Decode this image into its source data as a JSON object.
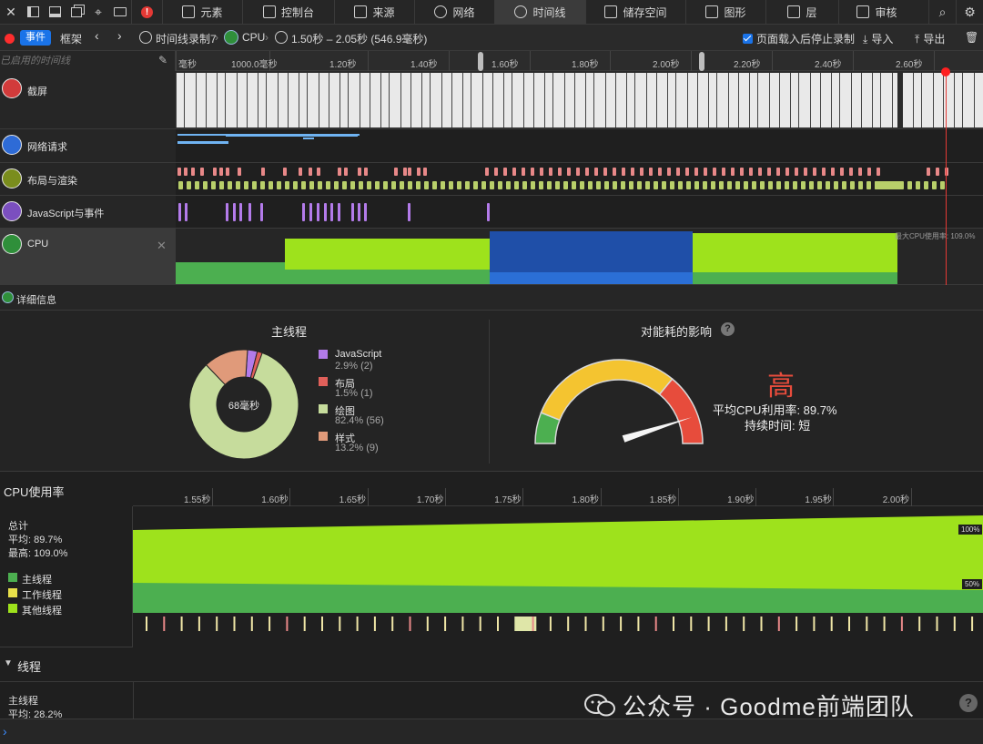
{
  "tabs": [
    {
      "label": "元素",
      "icon": "elements-icon"
    },
    {
      "label": "控制台",
      "icon": "console-icon"
    },
    {
      "label": "来源",
      "icon": "sources-icon"
    },
    {
      "label": "网络",
      "icon": "network-icon"
    },
    {
      "label": "时间线",
      "icon": "timeline-icon",
      "active": true
    },
    {
      "label": "储存空间",
      "icon": "storage-icon"
    },
    {
      "label": "图形",
      "icon": "graphics-icon"
    },
    {
      "label": "层",
      "icon": "layers-icon"
    },
    {
      "label": "审核",
      "icon": "audit-icon"
    }
  ],
  "toolbar": {
    "events_label": "事件",
    "frames_label": "框架",
    "recording_label": "时间线录制7",
    "cpu_label": "CPU",
    "range_label": "1.50秒 – 2.05秒 (546.9毫秒)",
    "stop_after_load_label": "页面载入后停止录制",
    "import_label": "导入",
    "export_label": "导出"
  },
  "ruler": {
    "filter_placeholder": "已启用的时间线",
    "ticks": [
      "毫秒",
      "1000.0毫秒",
      "1.20秒",
      "1.40秒",
      "1.60秒",
      "1.80秒",
      "2.00秒",
      "2.20秒",
      "2.40秒",
      "2.60秒"
    ]
  },
  "tracks": [
    {
      "name": "截屏",
      "icon": "camera-icon",
      "color": "#d23b3b"
    },
    {
      "name": "网络请求",
      "icon": "network-arrows-icon",
      "color": "#2e6bd6"
    },
    {
      "name": "布局与渲染",
      "icon": "brush-icon",
      "color": "#7a8d1d"
    },
    {
      "name": "JavaScript与事件",
      "icon": "script-icon",
      "color": "#7b4fbf"
    },
    {
      "name": "CPU",
      "icon": "cpu-icon",
      "color": "#2f8f3a"
    }
  ],
  "cpu_track": {
    "max_label": "最大CPU使用率: 109.0%"
  },
  "details_label": "详细信息",
  "main_thread": {
    "title": "主线程",
    "center_label": "68毫秒",
    "items": [
      {
        "name": "JavaScript",
        "value": "2.9% (2)",
        "pct": 2.9,
        "color": "#b37bea"
      },
      {
        "name": "布局",
        "value": "1.5% (1)",
        "pct": 1.5,
        "color": "#e0605a"
      },
      {
        "name": "绘图",
        "value": "82.4% (56)",
        "pct": 82.4,
        "color": "#c6dc9c"
      },
      {
        "name": "样式",
        "value": "13.2% (9)",
        "pct": 13.2,
        "color": "#e09a7a"
      }
    ]
  },
  "impact": {
    "title": "对能耗的影响",
    "level": "高",
    "level_color": "#e74c3c",
    "avg_cpu_label": "平均CPU利用率: 89.7%",
    "duration_label": "持续时间: 短",
    "needle_value": 0.89
  },
  "cpu_usage": {
    "title": "CPU使用率",
    "ticks": [
      "1.55秒",
      "1.60秒",
      "1.65秒",
      "1.70秒",
      "1.75秒",
      "1.80秒",
      "1.85秒",
      "1.90秒",
      "1.95秒",
      "2.00秒"
    ],
    "total_label": "总计",
    "avg_label": "平均: 89.7%",
    "max_label": "最高: 109.0%",
    "legend": [
      {
        "name": "主线程",
        "color": "#4caf50"
      },
      {
        "name": "工作线程",
        "color": "#e8e04a"
      },
      {
        "name": "其他线程",
        "color": "#9ee21c"
      }
    ],
    "label_100": "100%",
    "label_50": "50%"
  },
  "threads": {
    "title": "线程",
    "main_label": "主线程",
    "avg_label": "平均: 28.2%"
  },
  "watermark": "公众号 · Goodme前端团队"
}
